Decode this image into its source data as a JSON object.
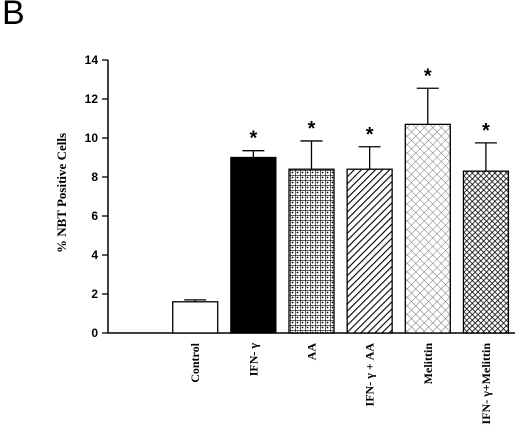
{
  "panel_label": "B",
  "chart_data": {
    "type": "bar",
    "ylabel": "% NBT Positive Cells",
    "xlabel": "",
    "ylim": [
      0,
      14
    ],
    "yticks": [
      0,
      2,
      4,
      6,
      8,
      10,
      12,
      14
    ],
    "categories": [
      "Control",
      "IFN- γ",
      "AA",
      "IFN- γ + AA",
      "Melittin",
      "IFN- γ+Melittin"
    ],
    "values": [
      1.6,
      9.0,
      8.4,
      8.4,
      10.7,
      8.3
    ],
    "errors": [
      0.1,
      0.35,
      1.45,
      1.15,
      1.85,
      1.45
    ],
    "significance": [
      "",
      "*",
      "*",
      "*",
      "*",
      "*"
    ],
    "fills": [
      "white",
      "black",
      "dotted-grid",
      "diagonal-hatch",
      "light-crosshatch",
      "dense-crosshatch"
    ],
    "grid": false,
    "legend": "none"
  }
}
